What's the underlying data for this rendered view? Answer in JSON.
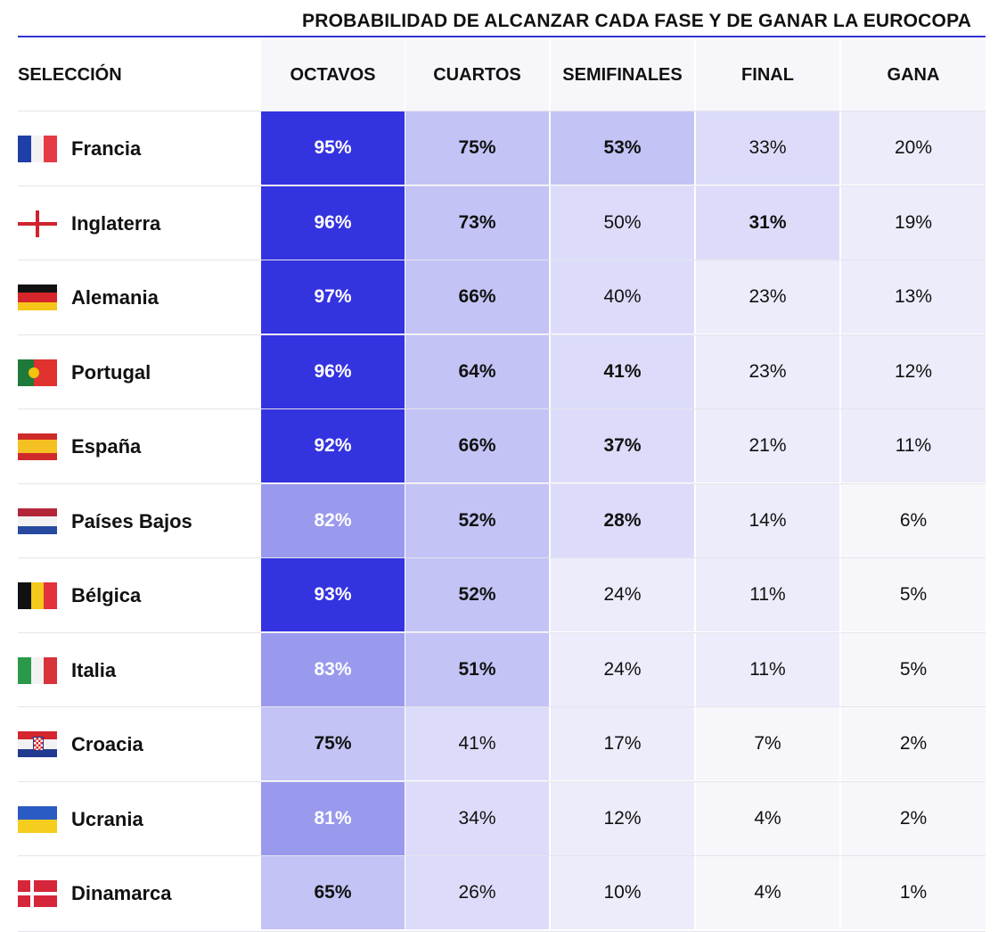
{
  "title": "PROBABILIDAD DE ALCANZAR CADA FASE Y DE GANAR LA EUROCOPA",
  "colors": {
    "accent": "#3433d6",
    "level4": "#3433e0",
    "level3": "#9999ee",
    "level2": "#c3c3f6",
    "level1": "#dcdcfa",
    "level0": "#ececfb",
    "level_min": "#f7f7fb"
  },
  "chart_data": {
    "type": "table",
    "title": "PROBABILIDAD DE ALCANZAR CADA FASE Y DE GANAR LA EUROCOPA",
    "columns": [
      "SELECCIÓN",
      "OCTAVOS",
      "CUARTOS",
      "SEMIFINALES",
      "FINAL",
      "GANA"
    ],
    "unit": "%",
    "rows": [
      {
        "team": "Francia",
        "flag": "france-flag-icon",
        "values": [
          95,
          75,
          53,
          33,
          20
        ]
      },
      {
        "team": "Inglaterra",
        "flag": "england-flag-icon",
        "values": [
          96,
          73,
          50,
          31,
          19
        ]
      },
      {
        "team": "Alemania",
        "flag": "germany-flag-icon",
        "values": [
          97,
          66,
          40,
          23,
          13
        ]
      },
      {
        "team": "Portugal",
        "flag": "portugal-flag-icon",
        "values": [
          96,
          64,
          41,
          23,
          12
        ]
      },
      {
        "team": "España",
        "flag": "spain-flag-icon",
        "values": [
          92,
          66,
          37,
          21,
          11
        ]
      },
      {
        "team": "Países Bajos",
        "flag": "netherlands-flag-icon",
        "values": [
          82,
          52,
          28,
          14,
          6
        ]
      },
      {
        "team": "Bélgica",
        "flag": "belgium-flag-icon",
        "values": [
          93,
          52,
          24,
          11,
          5
        ]
      },
      {
        "team": "Italia",
        "flag": "italy-flag-icon",
        "values": [
          83,
          51,
          24,
          11,
          5
        ]
      },
      {
        "team": "Croacia",
        "flag": "croatia-flag-icon",
        "values": [
          75,
          41,
          17,
          7,
          2
        ]
      },
      {
        "team": "Ucrania",
        "flag": "ukraine-flag-icon",
        "values": [
          81,
          34,
          12,
          4,
          2
        ]
      },
      {
        "team": "Dinamarca",
        "flag": "denmark-flag-icon",
        "values": [
          65,
          26,
          10,
          4,
          1
        ]
      }
    ]
  }
}
